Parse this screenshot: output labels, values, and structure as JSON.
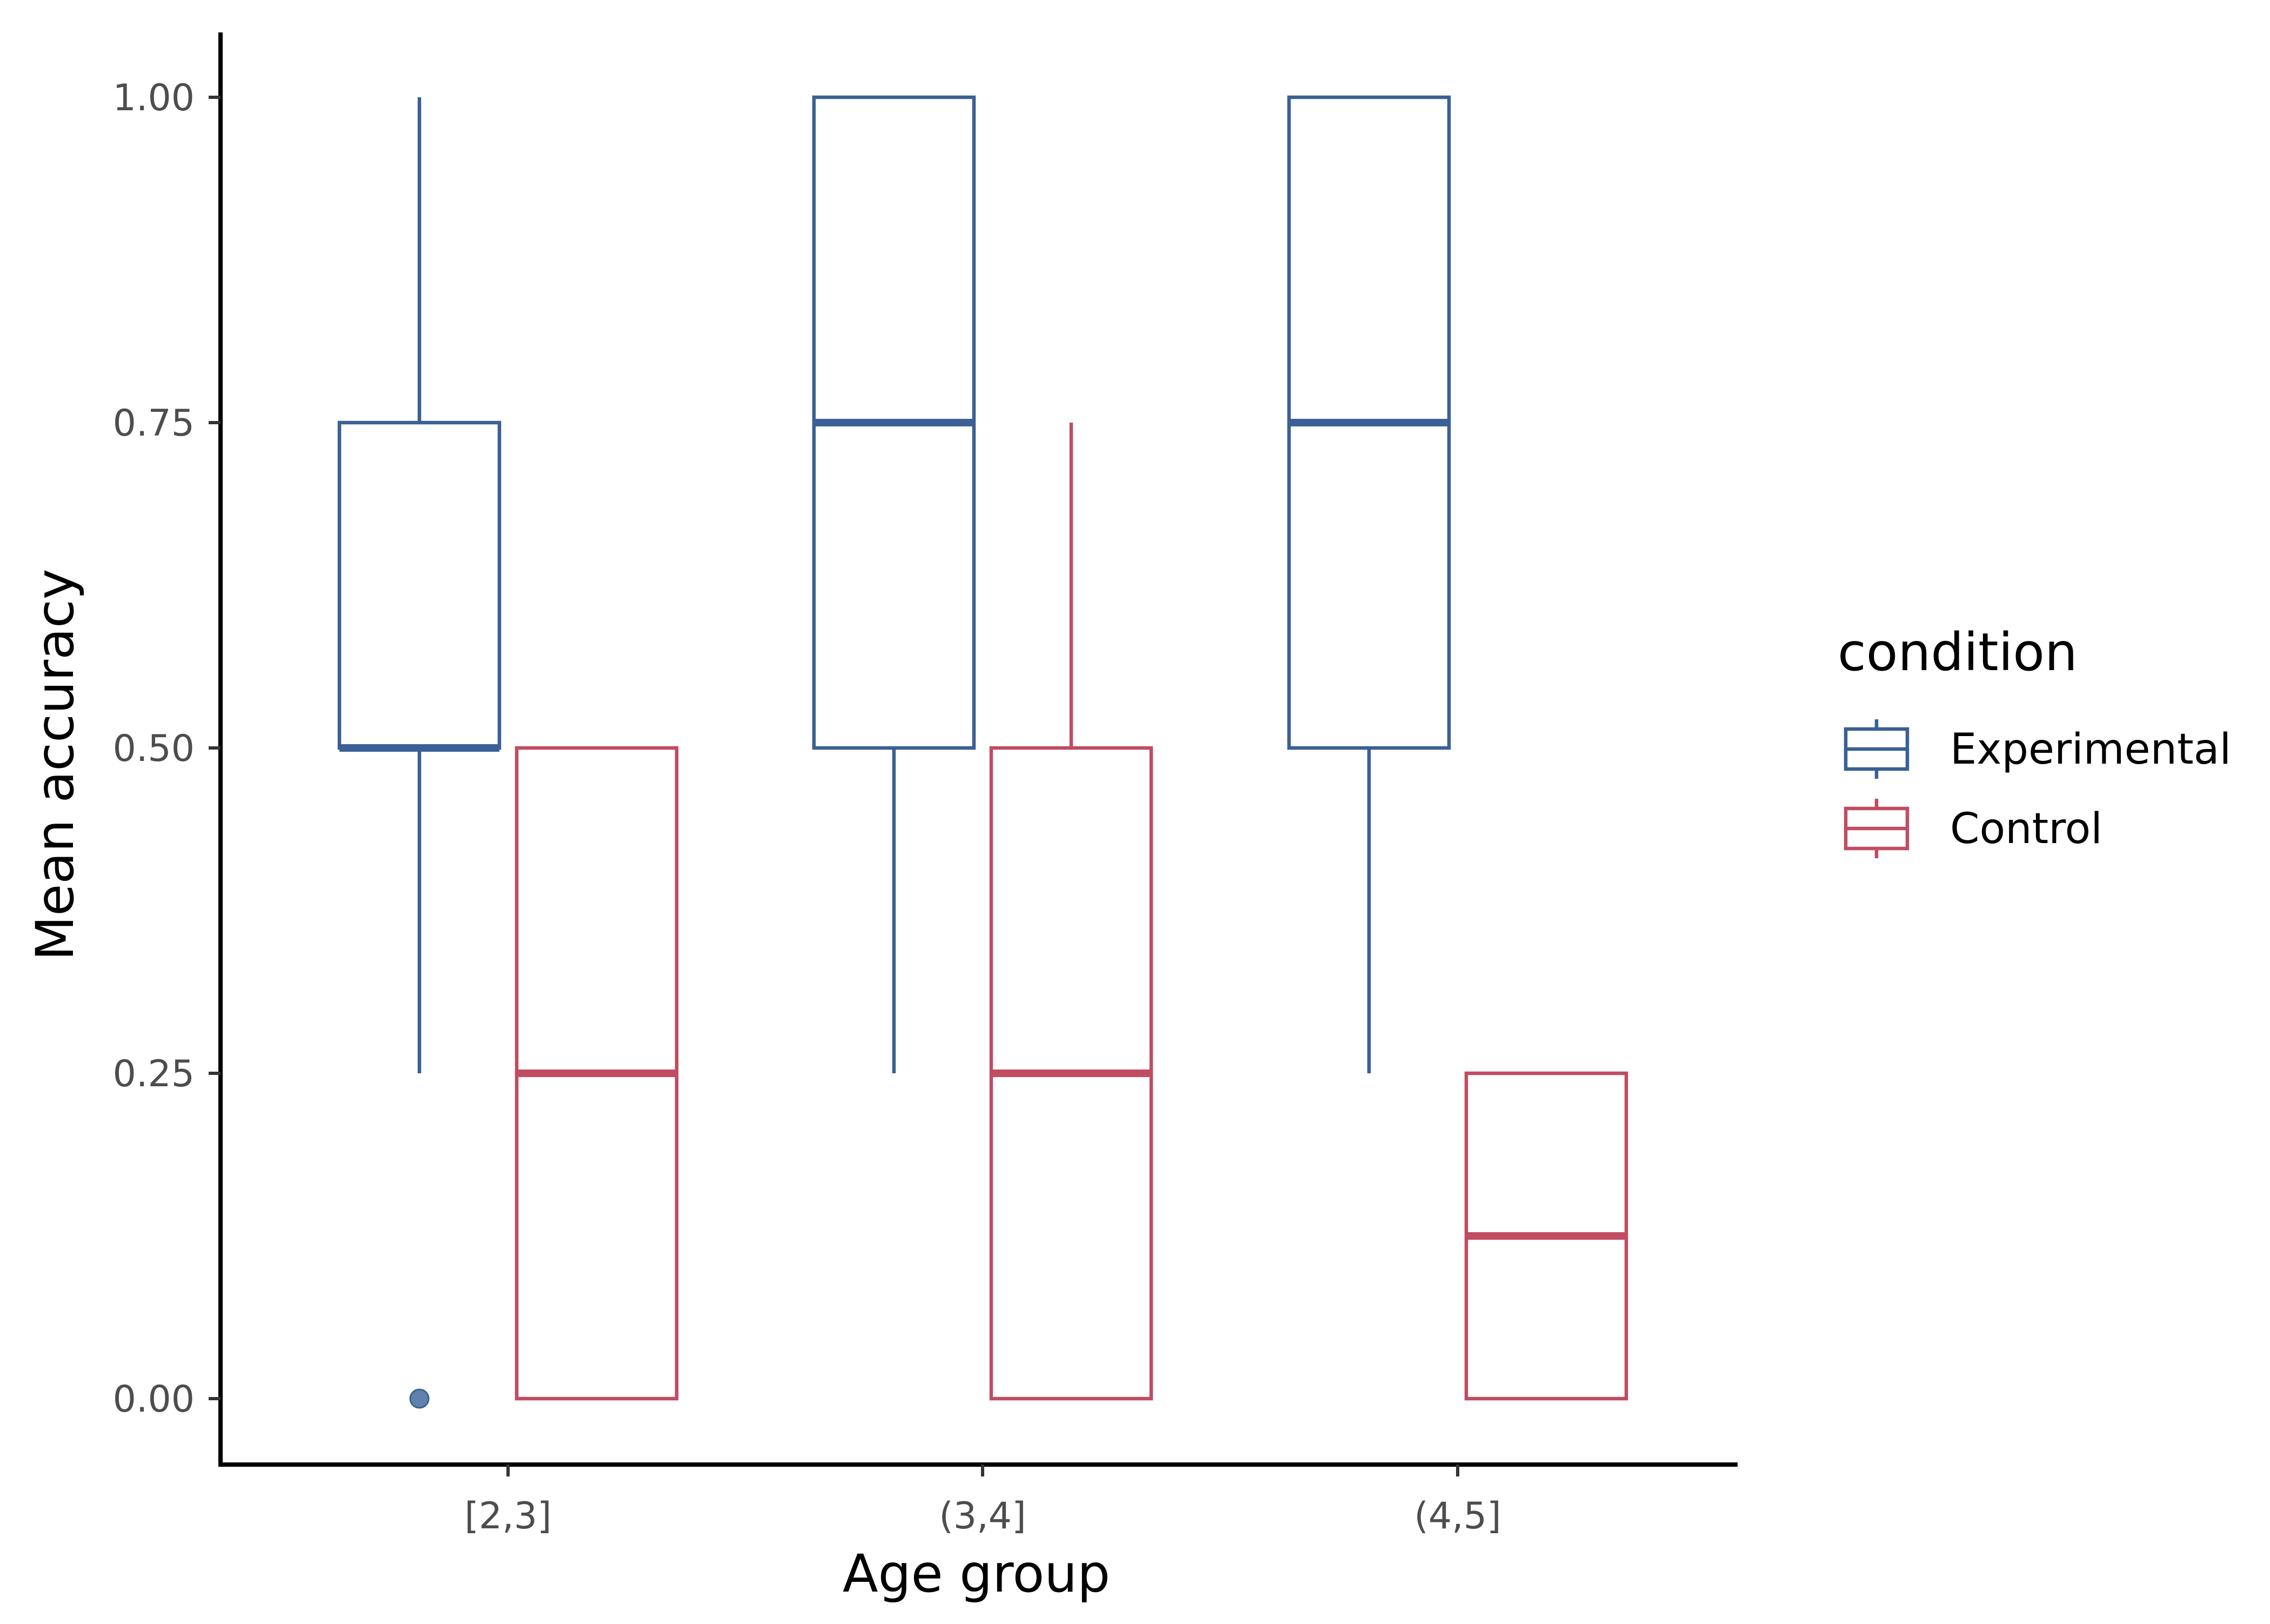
{
  "chart_data": {
    "type": "boxplot",
    "xlabel": "Age group",
    "ylabel": "Mean accuracy",
    "categories": [
      "[2,3]",
      "(3,4]",
      "(4,5]"
    ],
    "ylim": [
      -0.05,
      1.05
    ],
    "yticks": [
      0.0,
      0.25,
      0.5,
      0.75,
      1.0
    ],
    "ytick_labels": [
      "0.00",
      "0.25",
      "0.50",
      "0.75",
      "1.00"
    ],
    "legend": {
      "title": "condition",
      "position": "right"
    },
    "grid": false,
    "series": [
      {
        "name": "Experimental",
        "color": "#3a6095",
        "boxes": [
          {
            "category": "[2,3]",
            "whisker_low": 0.25,
            "q1": 0.5,
            "median": 0.5,
            "q3": 0.75,
            "whisker_high": 1.0,
            "outliers": [
              0.0
            ]
          },
          {
            "category": "(3,4]",
            "whisker_low": 0.25,
            "q1": 0.5,
            "median": 0.75,
            "q3": 1.0,
            "whisker_high": 1.0,
            "outliers": []
          },
          {
            "category": "(4,5]",
            "whisker_low": 0.25,
            "q1": 0.5,
            "median": 0.75,
            "q3": 1.0,
            "whisker_high": 1.0,
            "outliers": []
          }
        ]
      },
      {
        "name": "Control",
        "color": "#c04d62",
        "boxes": [
          {
            "category": "[2,3]",
            "whisker_low": 0.0,
            "q1": 0.0,
            "median": 0.25,
            "q3": 0.5,
            "whisker_high": 0.5,
            "outliers": []
          },
          {
            "category": "(3,4]",
            "whisker_low": 0.0,
            "q1": 0.0,
            "median": 0.25,
            "q3": 0.5,
            "whisker_high": 0.75,
            "outliers": []
          },
          {
            "category": "(4,5]",
            "whisker_low": 0.0,
            "q1": 0.0,
            "median": 0.125,
            "q3": 0.25,
            "whisker_high": 0.25,
            "outliers": []
          }
        ]
      }
    ]
  }
}
